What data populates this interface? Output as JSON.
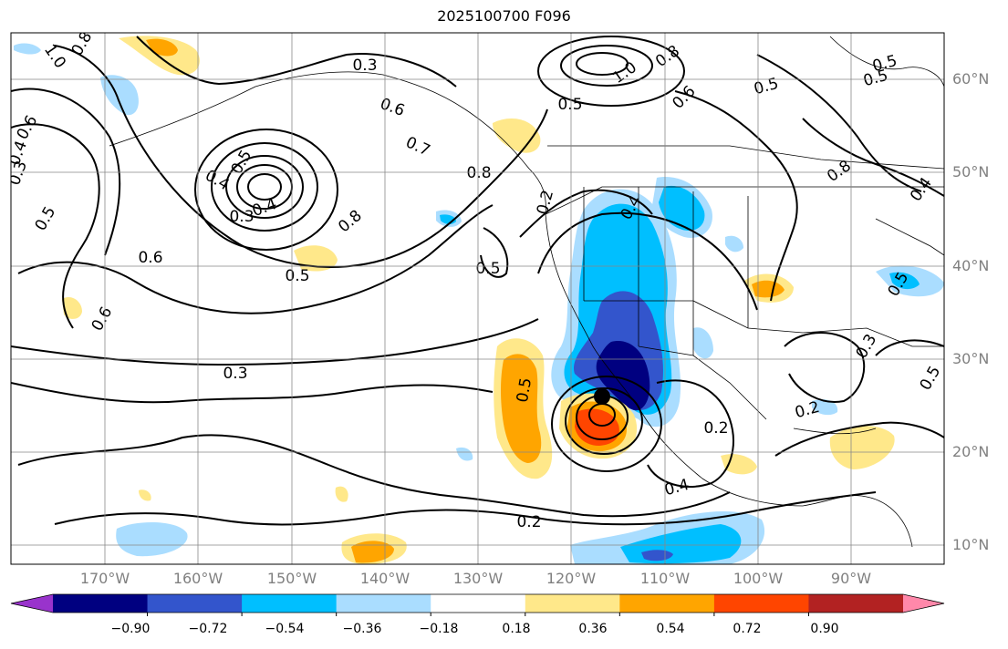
{
  "title": "2025100700 F096",
  "map": {
    "region": "Eastern North Pacific and North America",
    "projection": "cylindrical",
    "lat_range": [
      8,
      65
    ],
    "lon_range": [
      -180,
      -80
    ],
    "contour_style": "black solid lines",
    "fill": "anomaly shading",
    "storm_marker": {
      "lat": 26,
      "lon": -116.5,
      "symbol": "black filled circle"
    },
    "contour_labels": [
      "0.8",
      "1.0",
      "0.3",
      "0.6",
      "0.5",
      "0.4",
      "0.7",
      "0.8",
      "0.2",
      "0.5",
      "0.6",
      "1.0",
      "0.8",
      "0.5",
      "0.4",
      "0.6",
      "0.5",
      "0.8",
      "0.5",
      "0.3",
      "0.4",
      "0.5",
      "0.6",
      "0.5",
      "0.8",
      "0.3",
      "0.5",
      "0.2",
      "0.2",
      "0.4",
      "0.2",
      "0.3",
      "0.5",
      "0.4",
      "0.5",
      "0.3",
      "0.4",
      "0.6",
      "0.5"
    ]
  },
  "lat_labels": [
    "60°N",
    "50°N",
    "40°N",
    "30°N",
    "20°N",
    "10°N"
  ],
  "lon_labels": [
    "170°W",
    "160°W",
    "150°W",
    "140°W",
    "130°W",
    "120°W",
    "110°W",
    "100°W",
    "90°W"
  ],
  "colorbar": {
    "ticks": [
      "−0.90",
      "−0.72",
      "−0.54",
      "−0.36",
      "−0.18",
      "0.18",
      "0.36",
      "0.54",
      "0.72",
      "0.90"
    ],
    "colors": [
      "#9933cc",
      "#000080",
      "#3355cc",
      "#00bfff",
      "#aaddff",
      "#ffffff",
      "#ffe88a",
      "#ffa500",
      "#ff4500",
      "#b22222",
      "#ff88aa"
    ],
    "extend": "both"
  }
}
